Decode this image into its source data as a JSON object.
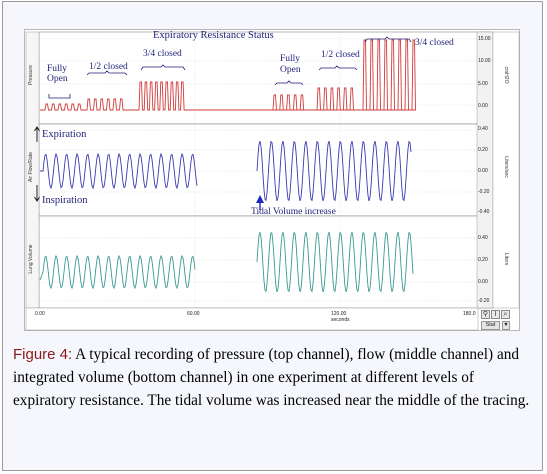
{
  "window": {
    "channels": [
      {
        "name": "Pressure",
        "unit": "cmH2O",
        "color": "#d23b3b",
        "ticks": [
          "15.00",
          "10.00",
          "5.00",
          "0.00"
        ]
      },
      {
        "name": "Air Flow/Rate",
        "unit": "Liters/sec",
        "color": "#3a3ab0",
        "ticks": [
          "0.40",
          "0.20",
          "0.00",
          "-0.20",
          "-0.40"
        ]
      },
      {
        "name": "Lung Volume",
        "unit": "Liters",
        "color": "#3a9a92",
        "ticks": [
          "0.40",
          "0.20",
          "0.00",
          "-0.20"
        ]
      }
    ],
    "time_axis": {
      "ticks": [
        "0.00",
        "60.00",
        "120.00",
        "180.0"
      ],
      "unit": "seconds"
    },
    "toolbar": {
      "stat_label": "Stat"
    }
  },
  "annotations": {
    "title": "Expiratory Resistance Status",
    "left_fully_open_1": "Fully",
    "left_fully_open_2": "Open",
    "left_half_closed": "1/2 closed",
    "left_three_quarter": "3/4 closed",
    "right_fully_open_1": "Fully",
    "right_fully_open_2": "Open",
    "right_half_closed": "1/2 closed",
    "right_three_quarter": "3/4 closed",
    "expiration": "Expiration",
    "inspiration": "Inspiration",
    "tidal_volume": "Tidal Volume  increase"
  },
  "caption": {
    "label": "Figure 4:",
    "text": " A typical recording of pressure (top channel), flow (middle channel) and integrated volume (bottom channel) in one experiment at different levels of expiratory resistance. The tidal volume was increased near the middle of the tracing."
  },
  "colors": {
    "pressure": "#d23b3b",
    "flow": "#3a3ab0",
    "volume": "#3a9a92",
    "annotation": "#1f1f7a",
    "figure_label": "#8b1a1a"
  }
}
